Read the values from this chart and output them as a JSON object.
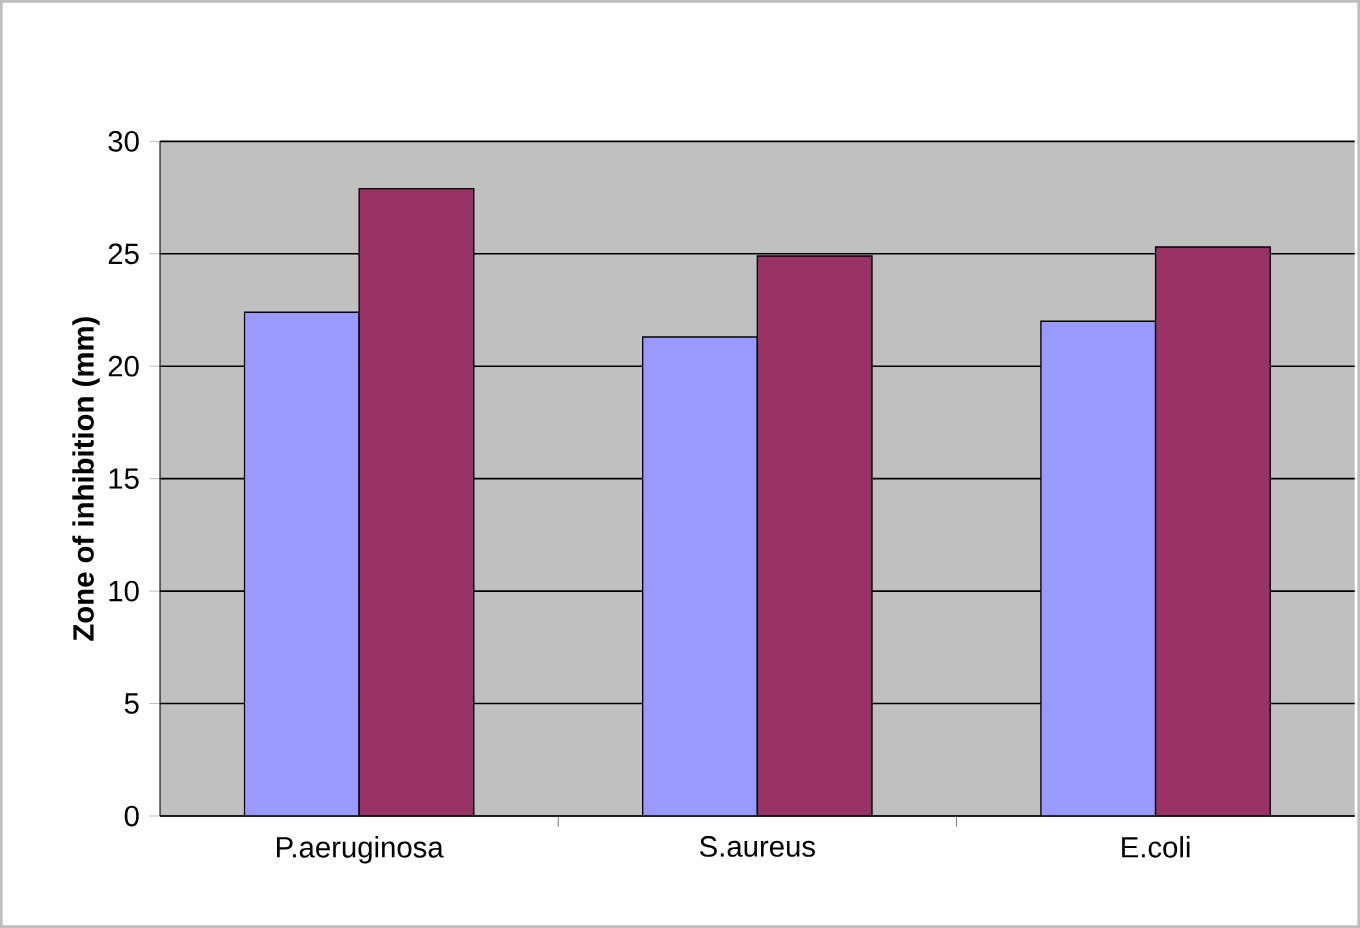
{
  "chart_data": {
    "type": "bar",
    "ylabel": "Zone of inhibition (mm)",
    "categories": [
      "P.aeruginosa",
      "S.aureus",
      "E.coli"
    ],
    "series": [
      {
        "color": "#9999ff",
        "values": [
          22.4,
          21.3,
          22.0
        ]
      },
      {
        "color": "#993366",
        "values": [
          27.9,
          24.9,
          25.3
        ]
      }
    ],
    "ylim": [
      0,
      30
    ],
    "yticks": [
      0,
      5,
      10,
      15,
      20,
      25,
      30
    ],
    "grid": "y"
  }
}
